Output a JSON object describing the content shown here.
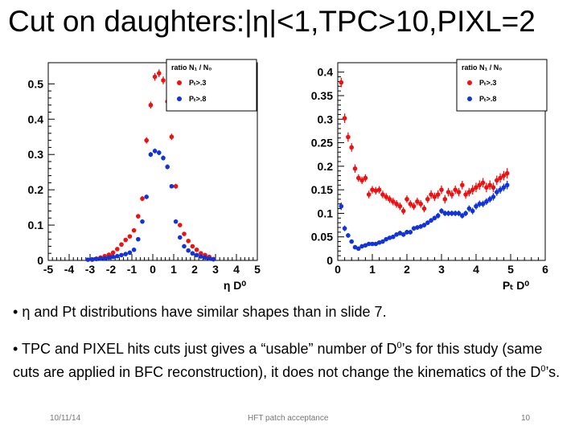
{
  "slide": {
    "title": "Cut on daughters:|η|<1,TPC>10,PIXL=2",
    "bullet1": {
      "prefix": "• ",
      "text": "η  and Pt distributions have similar shapes than in slide 7."
    },
    "bullet2": {
      "t1": "• TPC and PIXEL hits cuts just gives a “usable” number of D",
      "sup1": "0",
      "t2": "’s for this study (same cuts are applied in BFC reconstruction), it does not change the kinematics of the D",
      "sup2": "0",
      "t3": "’s."
    },
    "footer": {
      "date": "10/11/14",
      "center": "HFT patch acceptance",
      "page": "10"
    }
  },
  "colors": {
    "red": "#ee1111",
    "blue": "#1133dd"
  },
  "chart_data": [
    {
      "type": "scatter",
      "title": "",
      "xlabel": "η D⁰",
      "ylabel": "",
      "xlim": [
        -5,
        5
      ],
      "ylim": [
        0,
        0.56
      ],
      "xticks": [
        -5,
        -4,
        -3,
        -2,
        -1,
        0,
        1,
        2,
        3,
        4,
        5
      ],
      "yticks": [
        0,
        0.1,
        0.2,
        0.3,
        0.4,
        0.5
      ],
      "ytick_labels": [
        "0",
        "0.1",
        "0.2",
        "0.3",
        "0.4",
        "0.5"
      ],
      "legend": {
        "title": "ratio N₁ / N₀",
        "entries": [
          "Pₜ>.3",
          "Pₜ>.8"
        ],
        "position": "top-right"
      },
      "series": [
        {
          "name": "Pₜ>.3",
          "color": "red",
          "x": [
            -2.9,
            -2.7,
            -2.5,
            -2.3,
            -2.1,
            -1.9,
            -1.7,
            -1.5,
            -1.3,
            -1.1,
            -0.9,
            -0.7,
            -0.5,
            -0.3,
            -0.1,
            0.1,
            0.3,
            0.5,
            0.7,
            0.9,
            1.1,
            1.3,
            1.5,
            1.7,
            1.9,
            2.1,
            2.3,
            2.5,
            2.7,
            2.9
          ],
          "y": [
            0.002,
            0.005,
            0.008,
            0.012,
            0.016,
            0.022,
            0.032,
            0.045,
            0.058,
            0.068,
            0.085,
            0.125,
            0.175,
            0.34,
            0.44,
            0.52,
            0.53,
            0.51,
            0.45,
            0.35,
            0.21,
            0.1,
            0.075,
            0.055,
            0.04,
            0.03,
            0.02,
            0.015,
            0.01,
            0.004
          ],
          "err": [
            0.002,
            0.002,
            0.003,
            0.003,
            0.003,
            0.004,
            0.004,
            0.004,
            0.005,
            0.005,
            0.005,
            0.006,
            0.007,
            0.009,
            0.01,
            0.011,
            0.011,
            0.011,
            0.011,
            0.009,
            0.007,
            0.005,
            0.005,
            0.004,
            0.004,
            0.003,
            0.003,
            0.003,
            0.003,
            0.002
          ]
        },
        {
          "name": "Pₜ>.8",
          "color": "blue",
          "x": [
            -3.1,
            -2.9,
            -2.7,
            -2.5,
            -2.3,
            -2.1,
            -1.9,
            -1.7,
            -1.5,
            -1.3,
            -1.1,
            -0.9,
            -0.7,
            -0.5,
            -0.3,
            -0.1,
            0.1,
            0.3,
            0.5,
            0.7,
            0.9,
            1.1,
            1.3,
            1.5,
            1.7,
            1.9,
            2.1,
            2.3,
            2.5,
            2.7,
            2.9
          ],
          "y": [
            0.002,
            0.003,
            0.004,
            0.005,
            0.006,
            0.008,
            0.01,
            0.012,
            0.015,
            0.018,
            0.022,
            0.03,
            0.06,
            0.11,
            0.18,
            0.3,
            0.31,
            0.305,
            0.29,
            0.265,
            0.21,
            0.11,
            0.065,
            0.04,
            0.028,
            0.02,
            0.015,
            0.011,
            0.008,
            0.005,
            0.003
          ],
          "err": [
            0.002,
            0.002,
            0.002,
            0.002,
            0.002,
            0.002,
            0.003,
            0.003,
            0.003,
            0.003,
            0.003,
            0.004,
            0.004,
            0.005,
            0.006,
            0.007,
            0.007,
            0.007,
            0.007,
            0.007,
            0.006,
            0.005,
            0.004,
            0.003,
            0.003,
            0.003,
            0.002,
            0.002,
            0.002,
            0.002,
            0.002
          ]
        }
      ]
    },
    {
      "type": "scatter",
      "title": "",
      "xlabel": "Pₜ D⁰",
      "ylabel": "",
      "xlim": [
        0,
        6
      ],
      "ylim": [
        0,
        0.42
      ],
      "xticks": [
        0,
        1,
        2,
        3,
        4,
        5,
        6
      ],
      "yticks": [
        0,
        0.05,
        0.1,
        0.15,
        0.2,
        0.25,
        0.3,
        0.35,
        0.4
      ],
      "ytick_labels": [
        "0",
        "0.05",
        "0.1",
        "0.15",
        "0.2",
        "0.25",
        "0.3",
        "0.35",
        "0.4"
      ],
      "legend": {
        "title": "ratio N₁ / N₀",
        "entries": [
          "Pₜ>.3",
          "Pₜ>.8"
        ],
        "position": "top-right"
      },
      "series": [
        {
          "name": "Pₜ>.3",
          "color": "red",
          "x": [
            0.1,
            0.2,
            0.3,
            0.4,
            0.5,
            0.6,
            0.7,
            0.8,
            0.9,
            1.0,
            1.1,
            1.2,
            1.3,
            1.4,
            1.5,
            1.6,
            1.7,
            1.8,
            1.9,
            2.0,
            2.1,
            2.2,
            2.3,
            2.4,
            2.5,
            2.6,
            2.7,
            2.8,
            2.9,
            3.0,
            3.1,
            3.2,
            3.3,
            3.4,
            3.5,
            3.6,
            3.7,
            3.8,
            3.9,
            4.0,
            4.1,
            4.2,
            4.3,
            4.4,
            4.5,
            4.6,
            4.7,
            4.8,
            4.9
          ],
          "y": [
            0.378,
            0.302,
            0.262,
            0.24,
            0.195,
            0.175,
            0.17,
            0.175,
            0.14,
            0.15,
            0.148,
            0.15,
            0.14,
            0.135,
            0.13,
            0.125,
            0.12,
            0.115,
            0.105,
            0.13,
            0.12,
            0.115,
            0.125,
            0.12,
            0.11,
            0.13,
            0.14,
            0.135,
            0.14,
            0.15,
            0.13,
            0.145,
            0.14,
            0.15,
            0.145,
            0.16,
            0.14,
            0.145,
            0.15,
            0.155,
            0.16,
            0.165,
            0.155,
            0.16,
            0.155,
            0.17,
            0.175,
            0.18,
            0.185
          ],
          "err": [
            0.01,
            0.01,
            0.01,
            0.009,
            0.009,
            0.008,
            0.008,
            0.008,
            0.008,
            0.008,
            0.008,
            0.008,
            0.008,
            0.008,
            0.008,
            0.008,
            0.008,
            0.008,
            0.008,
            0.008,
            0.008,
            0.008,
            0.008,
            0.008,
            0.008,
            0.008,
            0.009,
            0.009,
            0.009,
            0.009,
            0.009,
            0.009,
            0.009,
            0.009,
            0.009,
            0.009,
            0.009,
            0.009,
            0.01,
            0.01,
            0.01,
            0.01,
            0.01,
            0.01,
            0.01,
            0.01,
            0.01,
            0.01,
            0.011
          ]
        },
        {
          "name": "Pₜ>.8",
          "color": "blue",
          "x": [
            0.1,
            0.2,
            0.3,
            0.4,
            0.5,
            0.6,
            0.7,
            0.8,
            0.9,
            1.0,
            1.1,
            1.2,
            1.3,
            1.4,
            1.5,
            1.6,
            1.7,
            1.8,
            1.9,
            2.0,
            2.1,
            2.2,
            2.3,
            2.4,
            2.5,
            2.6,
            2.7,
            2.8,
            2.9,
            3.0,
            3.1,
            3.2,
            3.3,
            3.4,
            3.5,
            3.6,
            3.7,
            3.8,
            3.9,
            4.0,
            4.1,
            4.2,
            4.3,
            4.4,
            4.5,
            4.6,
            4.7,
            4.8,
            4.9
          ],
          "y": [
            0.115,
            0.068,
            0.053,
            0.04,
            0.028,
            0.025,
            0.03,
            0.032,
            0.035,
            0.035,
            0.035,
            0.038,
            0.04,
            0.045,
            0.048,
            0.05,
            0.055,
            0.058,
            0.055,
            0.06,
            0.06,
            0.068,
            0.07,
            0.072,
            0.075,
            0.08,
            0.085,
            0.09,
            0.095,
            0.105,
            0.1,
            0.1,
            0.1,
            0.1,
            0.1,
            0.095,
            0.1,
            0.11,
            0.105,
            0.115,
            0.12,
            0.12,
            0.125,
            0.13,
            0.135,
            0.145,
            0.15,
            0.155,
            0.16
          ],
          "err": [
            0.008,
            0.006,
            0.005,
            0.004,
            0.004,
            0.004,
            0.004,
            0.004,
            0.004,
            0.004,
            0.004,
            0.004,
            0.004,
            0.004,
            0.004,
            0.004,
            0.004,
            0.005,
            0.005,
            0.005,
            0.005,
            0.005,
            0.005,
            0.005,
            0.005,
            0.005,
            0.005,
            0.005,
            0.006,
            0.006,
            0.006,
            0.006,
            0.006,
            0.006,
            0.006,
            0.006,
            0.006,
            0.007,
            0.007,
            0.007,
            0.007,
            0.007,
            0.007,
            0.007,
            0.008,
            0.008,
            0.008,
            0.008,
            0.009
          ]
        }
      ]
    }
  ]
}
